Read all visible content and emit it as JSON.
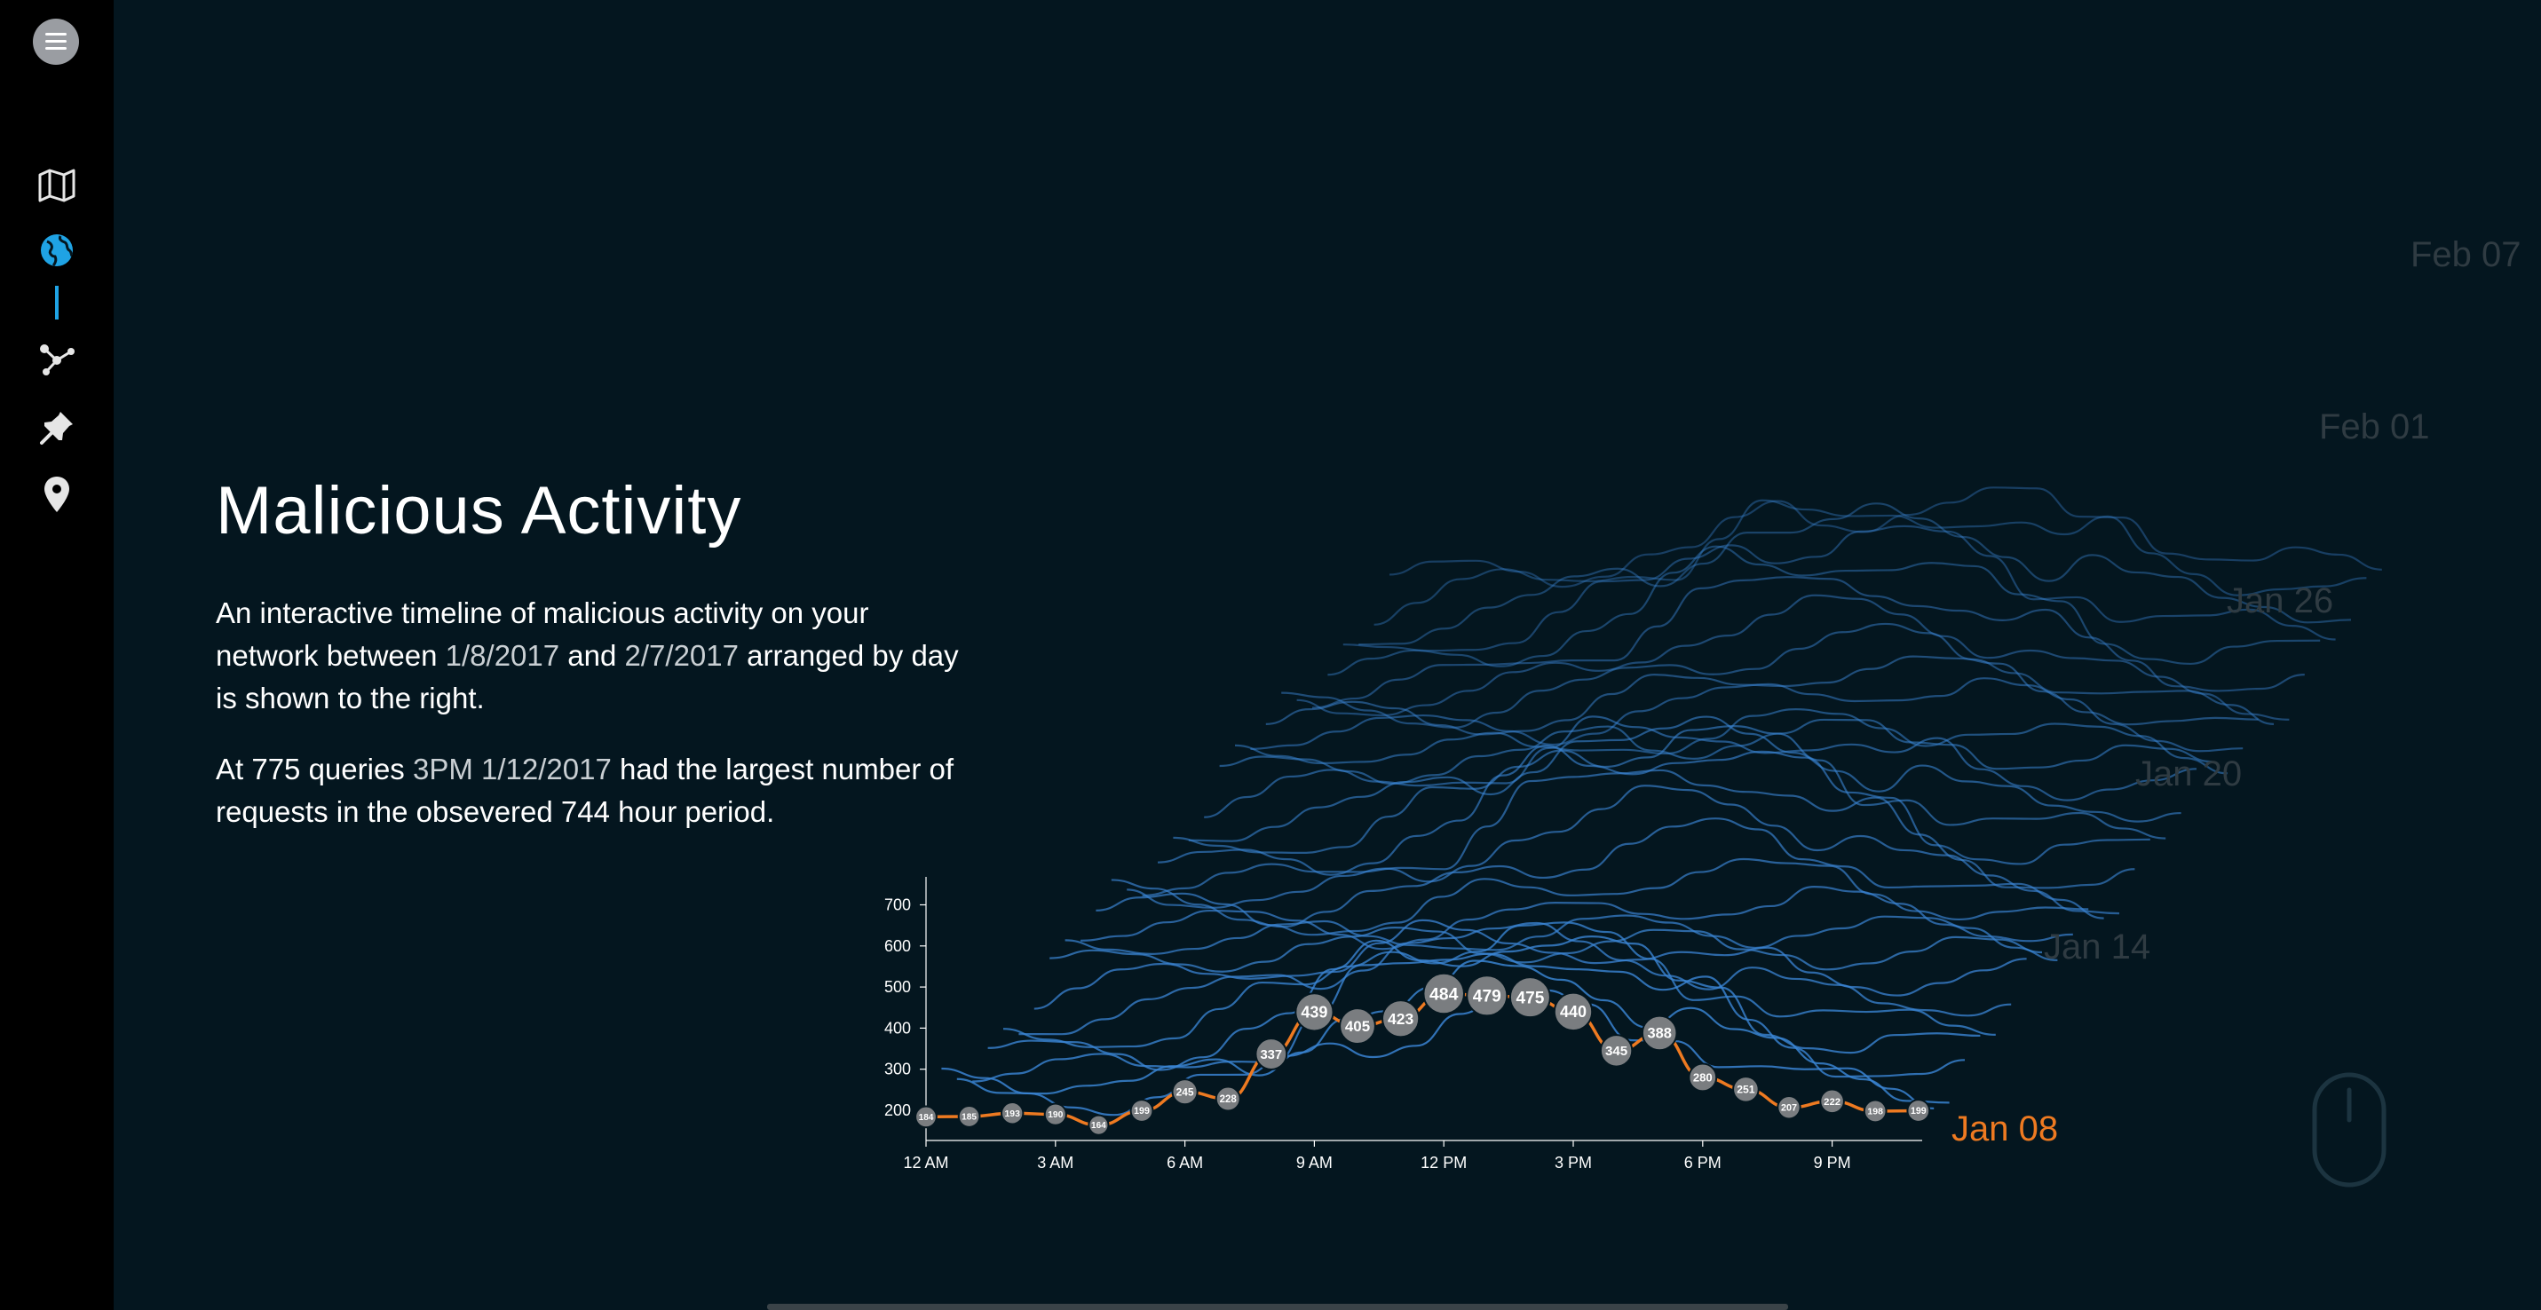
{
  "sidebar": {
    "items": [
      {
        "icon": "hamburger-menu-icon"
      },
      {
        "icon": "map-icon"
      },
      {
        "icon": "globe-icon",
        "active": true
      },
      {
        "icon": "network-icon"
      },
      {
        "icon": "pin-icon"
      },
      {
        "icon": "location-marker-icon"
      }
    ],
    "accent_color": "#1fa3e4"
  },
  "content": {
    "title": "Malicious Activity",
    "p1_a": "An interactive timeline of malicious activity on your network between ",
    "p1_date1": "1/8/2017",
    "p1_and": " and ",
    "p1_date2": "2/7/2017",
    "p1_b": " arranged by day is shown to the right.",
    "p2_a": "At 775 queries ",
    "p2_peak": "3PM 1/12/2017",
    "p2_b": " had the largest number of requests in the obsevered 744 hour period."
  },
  "day_labels": [
    "Feb 07",
    "Feb 01",
    "Jan 26",
    "Jan 20",
    "Jan 14"
  ],
  "active_day_label": "Jan 08",
  "colors": {
    "background": "#04161f",
    "line": "#ee7a21",
    "ridge": "#3b86d6",
    "bubble": "#7a7d80"
  },
  "chart_data": {
    "type": "line",
    "series": [
      {
        "name": "Jan 08",
        "values": [
          184,
          185,
          193,
          190,
          164,
          199,
          245,
          228,
          337,
          439,
          405,
          423,
          484,
          479,
          475,
          440,
          345,
          388,
          280,
          251,
          207,
          222,
          198,
          199
        ]
      }
    ],
    "x": [
      "12 AM",
      "1 AM",
      "2 AM",
      "3 AM",
      "4 AM",
      "5 AM",
      "6 AM",
      "7 AM",
      "8 AM",
      "9 AM",
      "10 AM",
      "11 AM",
      "12 PM",
      "1 PM",
      "2 PM",
      "3 PM",
      "4 PM",
      "5 PM",
      "6 PM",
      "7 PM",
      "8 PM",
      "9 PM",
      "10 PM",
      "11 PM"
    ],
    "x_tick_labels": [
      "12 AM",
      "3 AM",
      "6 AM",
      "9 AM",
      "12 PM",
      "3 PM",
      "6 PM",
      "9 PM"
    ],
    "y_ticks": [
      200,
      300,
      400,
      500,
      600,
      700
    ],
    "ylim": [
      100,
      750
    ],
    "ridge_days": 31
  }
}
